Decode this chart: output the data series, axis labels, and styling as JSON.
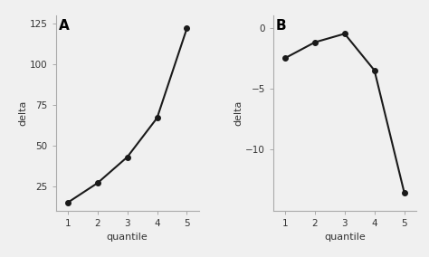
{
  "panel_A": {
    "x": [
      1,
      2,
      3,
      4,
      5
    ],
    "y": [
      15,
      27,
      43,
      67,
      122
    ],
    "xlabel": "quantile",
    "ylabel": "delta",
    "ylim": [
      10,
      130
    ],
    "yticks": [
      25,
      50,
      75,
      100,
      125
    ],
    "xticks": [
      1,
      2,
      3,
      4,
      5
    ],
    "label": "A"
  },
  "panel_B": {
    "x": [
      1,
      2,
      3,
      4,
      5
    ],
    "y": [
      -2.5,
      -1.2,
      -0.5,
      -3.5,
      -13.5
    ],
    "xlabel": "quantile",
    "ylabel": "delta",
    "ylim": [
      -15,
      1
    ],
    "yticks": [
      0,
      -5,
      -10
    ],
    "xticks": [
      1,
      2,
      3,
      4,
      5
    ],
    "label": "B"
  },
  "line_color": "#1a1a1a",
  "marker": "o",
  "markersize": 4,
  "linewidth": 1.5,
  "bg_color": "#f0f0f0",
  "spine_color": "#aaaaaa",
  "tick_color": "#333333",
  "label_fontsize": 8,
  "tick_fontsize": 7.5,
  "panel_label_fontsize": 11
}
